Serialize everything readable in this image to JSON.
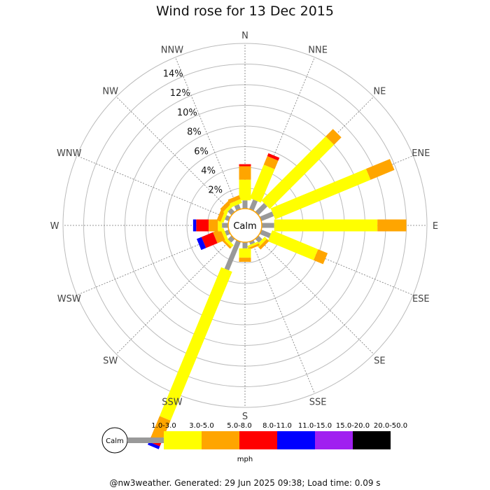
{
  "title": "Wind rose for 13 Dec 2015",
  "footer": "@nw3weather. Generated: 29 Jun 2025 09:38; Load time: 0.09 s",
  "chart_data": {
    "type": "wind-rose",
    "title": "Wind rose for 13 Dec 2015",
    "center_label": "Calm",
    "directions": [
      "N",
      "NNE",
      "NE",
      "ENE",
      "E",
      "ESE",
      "SE",
      "SSE",
      "S",
      "SSW",
      "SW",
      "WSW",
      "W",
      "WNW",
      "NW",
      "NNW"
    ],
    "radial_ticks": [
      "2%",
      "4%",
      "6%",
      "8%",
      "10%",
      "12%",
      "14%"
    ],
    "radial_values": [
      2,
      4,
      6,
      8,
      10,
      12,
      14
    ],
    "radial_max": 16,
    "radial_unit": "%",
    "unit": "mph",
    "bins": [
      "1.0-3.0",
      "3.0-5.0",
      "5.0-8.0",
      "8.0-11.0",
      "11.0-15.0",
      "15.0-20.0",
      "20.0-50.0"
    ],
    "bin_colors": [
      "#999999",
      "#ffff00",
      "#ffa500",
      "#ff0000",
      "#0000ff",
      "#a020f0",
      "#000000"
    ],
    "calm_bin_label": "Calm",
    "series": [
      {
        "direction": "N",
        "values": [
          0.8,
          2.0,
          1.3,
          0.2,
          0,
          0,
          0
        ]
      },
      {
        "direction": "NNE",
        "values": [
          1.0,
          3.5,
          0.9,
          0.3,
          0,
          0,
          0
        ]
      },
      {
        "direction": "NE",
        "values": [
          1.2,
          8.8,
          1.0,
          0,
          0,
          0,
          0
        ]
      },
      {
        "direction": "ENE",
        "values": [
          1.3,
          10.0,
          2.5,
          0,
          0,
          0,
          0
        ]
      },
      {
        "direction": "E",
        "values": [
          1.2,
          10.0,
          2.8,
          0,
          0,
          0,
          0
        ]
      },
      {
        "direction": "ESE",
        "values": [
          1.0,
          4.8,
          1.0,
          0,
          0,
          0,
          0
        ]
      },
      {
        "direction": "SE",
        "values": [
          0.5,
          0.3,
          0.3,
          0,
          0,
          0,
          0
        ]
      },
      {
        "direction": "SSE",
        "values": [
          0.3,
          0.2,
          0.2,
          0,
          0,
          0,
          0
        ]
      },
      {
        "direction": "S",
        "values": [
          0.6,
          0.9,
          0.4,
          0,
          0,
          0,
          0
        ]
      },
      {
        "direction": "SSW",
        "values": [
          3.0,
          15.6,
          2.2,
          0.5,
          0.3,
          0,
          0
        ]
      },
      {
        "direction": "SW",
        "values": [
          0.5,
          0.3,
          0.2,
          0,
          0,
          0,
          0
        ]
      },
      {
        "direction": "WSW",
        "values": [
          0.4,
          0.3,
          0.8,
          1.2,
          0.5,
          0,
          0
        ]
      },
      {
        "direction": "W",
        "values": [
          0.6,
          0.4,
          0.9,
          1.2,
          0.3,
          0,
          0
        ]
      },
      {
        "direction": "WNW",
        "values": [
          0.4,
          0.3,
          0.4,
          0,
          0,
          0,
          0
        ]
      },
      {
        "direction": "NW",
        "values": [
          0.5,
          0.3,
          0.4,
          0,
          0,
          0,
          0
        ]
      },
      {
        "direction": "NNW",
        "values": [
          0.5,
          0.4,
          0.4,
          0,
          0,
          0,
          0
        ]
      }
    ],
    "grid": true,
    "legend_position": "bottom"
  }
}
